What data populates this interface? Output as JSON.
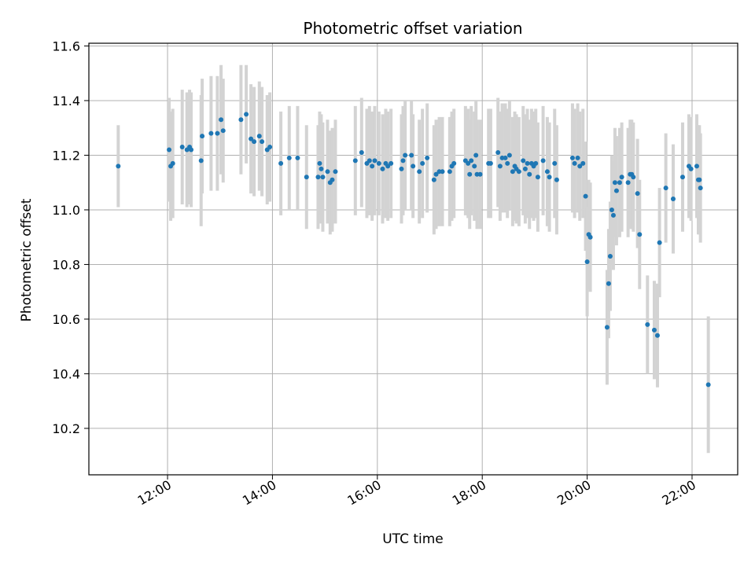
{
  "chart_data": {
    "type": "scatter",
    "title": "Photometric offset variation",
    "xlabel": "UTC time",
    "ylabel": "Photometric offset",
    "x_unit": "hour (UTC)",
    "xlim": [
      10.5,
      22.87
    ],
    "ylim": [
      10.03,
      11.61
    ],
    "xticks": [
      12,
      14,
      16,
      18,
      20,
      22
    ],
    "xtick_labels": [
      "12:00",
      "14:00",
      "16:00",
      "18:00",
      "20:00",
      "22:00"
    ],
    "yticks": [
      10.2,
      10.4,
      10.6,
      10.8,
      11.0,
      11.2,
      11.4,
      11.6
    ],
    "ytick_labels": [
      "10.2",
      "10.4",
      "10.6",
      "10.8",
      "11.0",
      "11.2",
      "11.4",
      "11.6"
    ],
    "grid": true,
    "point_color": "#1f77b4",
    "errorbar_color": "#d3d3d3",
    "points": [
      [
        11.06,
        11.16,
        0.15
      ],
      [
        12.03,
        11.22,
        0.19
      ],
      [
        12.06,
        11.16,
        0.2
      ],
      [
        12.1,
        11.17,
        0.2
      ],
      [
        12.28,
        11.23,
        0.21
      ],
      [
        12.37,
        11.22,
        0.21
      ],
      [
        12.42,
        11.23,
        0.21
      ],
      [
        12.45,
        11.22,
        0.21
      ],
      [
        12.64,
        11.18,
        0.24
      ],
      [
        12.66,
        11.27,
        0.21
      ],
      [
        12.83,
        11.28,
        0.21
      ],
      [
        12.95,
        11.28,
        0.21
      ],
      [
        13.02,
        11.33,
        0.2
      ],
      [
        13.06,
        11.29,
        0.19
      ],
      [
        13.4,
        11.33,
        0.2
      ],
      [
        13.5,
        11.35,
        0.18
      ],
      [
        13.59,
        11.26,
        0.2
      ],
      [
        13.65,
        11.25,
        0.2
      ],
      [
        13.75,
        11.27,
        0.2
      ],
      [
        13.8,
        11.25,
        0.2
      ],
      [
        13.9,
        11.22,
        0.2
      ],
      [
        13.95,
        11.23,
        0.2
      ],
      [
        14.16,
        11.17,
        0.19
      ],
      [
        14.32,
        11.19,
        0.19
      ],
      [
        14.48,
        11.19,
        0.19
      ],
      [
        14.65,
        11.12,
        0.19
      ],
      [
        14.87,
        11.12,
        0.19
      ],
      [
        14.9,
        11.17,
        0.19
      ],
      [
        14.93,
        11.15,
        0.2
      ],
      [
        14.96,
        11.12,
        0.2
      ],
      [
        15.05,
        11.14,
        0.19
      ],
      [
        15.1,
        11.1,
        0.19
      ],
      [
        15.14,
        11.11,
        0.19
      ],
      [
        15.2,
        11.14,
        0.19
      ],
      [
        15.58,
        11.18,
        0.2
      ],
      [
        15.7,
        11.21,
        0.2
      ],
      [
        15.8,
        11.17,
        0.2
      ],
      [
        15.85,
        11.18,
        0.2
      ],
      [
        15.9,
        11.16,
        0.2
      ],
      [
        15.95,
        11.18,
        0.2
      ],
      [
        16.03,
        11.17,
        0.19
      ],
      [
        16.1,
        11.15,
        0.2
      ],
      [
        16.16,
        11.17,
        0.2
      ],
      [
        16.2,
        11.16,
        0.2
      ],
      [
        16.26,
        11.17,
        0.2
      ],
      [
        16.46,
        11.15,
        0.2
      ],
      [
        16.49,
        11.18,
        0.2
      ],
      [
        16.53,
        11.2,
        0.2
      ],
      [
        16.65,
        11.2,
        0.2
      ],
      [
        16.68,
        11.16,
        0.19
      ],
      [
        16.8,
        11.14,
        0.19
      ],
      [
        16.86,
        11.17,
        0.2
      ],
      [
        16.95,
        11.19,
        0.2
      ],
      [
        17.08,
        11.11,
        0.2
      ],
      [
        17.12,
        11.13,
        0.2
      ],
      [
        17.18,
        11.14,
        0.2
      ],
      [
        17.24,
        11.14,
        0.2
      ],
      [
        17.38,
        11.14,
        0.2
      ],
      [
        17.42,
        11.16,
        0.2
      ],
      [
        17.46,
        11.17,
        0.2
      ],
      [
        17.68,
        11.18,
        0.2
      ],
      [
        17.73,
        11.17,
        0.2
      ],
      [
        17.76,
        11.13,
        0.2
      ],
      [
        17.79,
        11.18,
        0.2
      ],
      [
        17.85,
        11.16,
        0.2
      ],
      [
        17.88,
        11.2,
        0.2
      ],
      [
        17.9,
        11.13,
        0.2
      ],
      [
        17.96,
        11.13,
        0.2
      ],
      [
        18.12,
        11.17,
        0.2
      ],
      [
        18.16,
        11.17,
        0.2
      ],
      [
        18.3,
        11.21,
        0.2
      ],
      [
        18.34,
        11.16,
        0.2
      ],
      [
        18.38,
        11.19,
        0.2
      ],
      [
        18.44,
        11.19,
        0.2
      ],
      [
        18.48,
        11.17,
        0.2
      ],
      [
        18.52,
        11.2,
        0.2
      ],
      [
        18.58,
        11.14,
        0.2
      ],
      [
        18.62,
        11.16,
        0.2
      ],
      [
        18.65,
        11.15,
        0.2
      ],
      [
        18.7,
        11.14,
        0.2
      ],
      [
        18.78,
        11.18,
        0.2
      ],
      [
        18.82,
        11.15,
        0.2
      ],
      [
        18.86,
        11.17,
        0.2
      ],
      [
        18.9,
        11.13,
        0.2
      ],
      [
        18.94,
        11.17,
        0.2
      ],
      [
        18.98,
        11.16,
        0.2
      ],
      [
        19.02,
        11.17,
        0.2
      ],
      [
        19.06,
        11.12,
        0.2
      ],
      [
        19.16,
        11.18,
        0.2
      ],
      [
        19.24,
        11.14,
        0.2
      ],
      [
        19.28,
        11.12,
        0.2
      ],
      [
        19.38,
        11.17,
        0.2
      ],
      [
        19.42,
        11.11,
        0.2
      ],
      [
        19.72,
        11.19,
        0.2
      ],
      [
        19.76,
        11.17,
        0.2
      ],
      [
        19.82,
        11.19,
        0.2
      ],
      [
        19.86,
        11.16,
        0.2
      ],
      [
        19.92,
        11.17,
        0.2
      ],
      [
        19.97,
        11.05,
        0.2
      ],
      [
        20.0,
        10.81,
        0.2
      ],
      [
        20.03,
        10.91,
        0.2
      ],
      [
        20.06,
        10.9,
        0.2
      ],
      [
        20.38,
        10.57,
        0.21
      ],
      [
        20.41,
        10.73,
        0.2
      ],
      [
        20.44,
        10.83,
        0.2
      ],
      [
        20.47,
        11.0,
        0.2
      ],
      [
        20.5,
        10.98,
        0.2
      ],
      [
        20.53,
        11.1,
        0.2
      ],
      [
        20.56,
        11.07,
        0.2
      ],
      [
        20.62,
        11.1,
        0.2
      ],
      [
        20.66,
        11.12,
        0.2
      ],
      [
        20.78,
        11.1,
        0.2
      ],
      [
        20.82,
        11.13,
        0.2
      ],
      [
        20.85,
        11.13,
        0.2
      ],
      [
        20.88,
        11.12,
        0.2
      ],
      [
        20.96,
        11.06,
        0.2
      ],
      [
        21.0,
        10.91,
        0.2
      ],
      [
        21.15,
        10.58,
        0.18
      ],
      [
        21.28,
        10.56,
        0.18
      ],
      [
        21.34,
        10.54,
        0.19
      ],
      [
        21.38,
        10.88,
        0.2
      ],
      [
        21.5,
        11.08,
        0.2
      ],
      [
        21.64,
        11.04,
        0.2
      ],
      [
        21.82,
        11.12,
        0.2
      ],
      [
        21.94,
        11.16,
        0.19
      ],
      [
        21.98,
        11.15,
        0.19
      ],
      [
        22.09,
        11.16,
        0.19
      ],
      [
        22.12,
        11.11,
        0.2
      ],
      [
        22.14,
        11.11,
        0.2
      ],
      [
        22.16,
        11.08,
        0.2
      ],
      [
        22.31,
        10.36,
        0.25
      ]
    ]
  }
}
